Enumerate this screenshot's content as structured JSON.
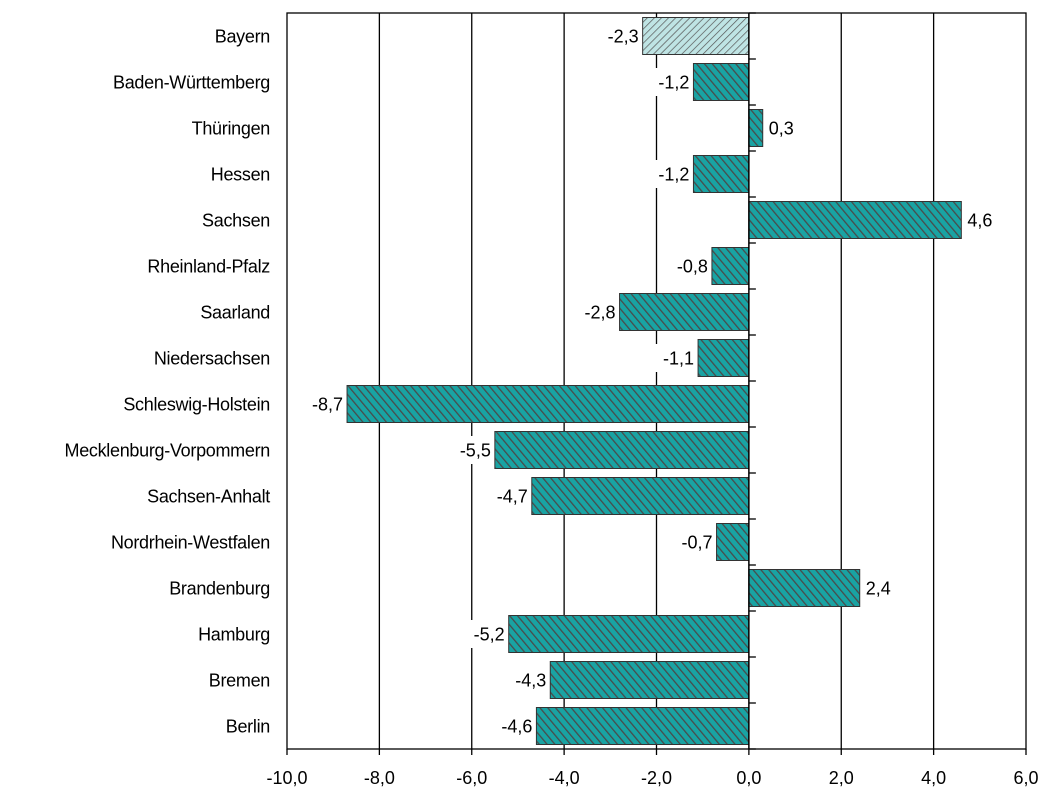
{
  "chart_data": {
    "type": "bar",
    "orientation": "horizontal",
    "categories": [
      "Bayern",
      "Baden-Württemberg",
      "Thüringen",
      "Hessen",
      "Sachsen",
      "Rheinland-Pfalz",
      "Saarland",
      "Niedersachsen",
      "Schleswig-Holstein",
      "Mecklenburg-Vorpommern",
      "Sachsen-Anhalt",
      "Nordrhein-Westfalen",
      "Brandenburg",
      "Hamburg",
      "Bremen",
      "Berlin"
    ],
    "values": [
      -2.3,
      -1.2,
      0.3,
      -1.2,
      4.6,
      -0.8,
      -2.8,
      -1.1,
      -8.7,
      -5.5,
      -4.7,
      -0.7,
      2.4,
      -5.2,
      -4.3,
      -4.6
    ],
    "value_labels": [
      "-2,3",
      "-1,2",
      "0,3",
      "-1,2",
      "4,6",
      "-0,8",
      "-2,8",
      "-1,1",
      "-8,7",
      "-5,5",
      "-4,7",
      "-0,7",
      "2,4",
      "-5,2",
      "-4,3",
      "-4,6"
    ],
    "highlighted_category": "Bayern",
    "xlim": [
      -10,
      6
    ],
    "xticks": [
      -10,
      -8,
      -6,
      -4,
      -2,
      0,
      2,
      4,
      6
    ],
    "xtick_labels": [
      "-10,0",
      "-8,0",
      "-6,0",
      "-4,0",
      "-2,0",
      "0,0",
      "2,0",
      "4,0",
      "6,0"
    ],
    "title": "",
    "xlabel": "",
    "ylabel": "",
    "grid": "vertical",
    "legend": "none",
    "colors": {
      "bar_light": "#19a3a3",
      "bar_dark": "#4a4a4a",
      "highlight_light": "#bfe4e4",
      "highlight_stripe": "#555555",
      "axis": "#000000"
    }
  }
}
